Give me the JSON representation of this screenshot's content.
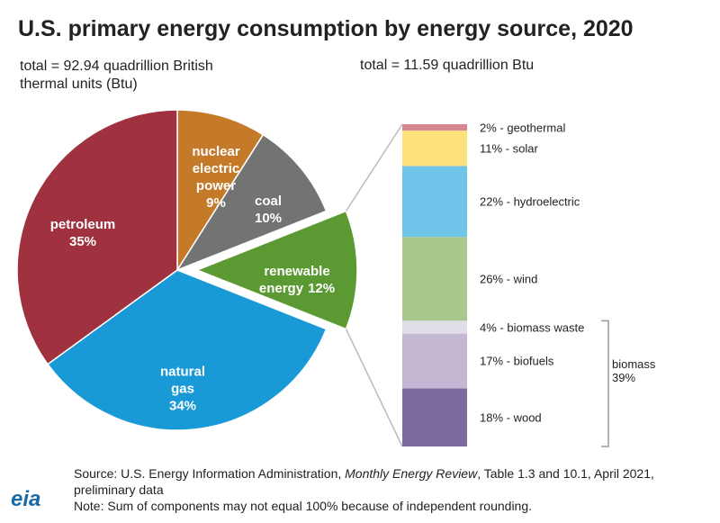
{
  "title": "U.S. primary energy consumption by energy source, 2020",
  "chart_data": [
    {
      "type": "pie",
      "subtitle": "total = 92.94 quadrillion British thermal units (Btu)",
      "categories": [
        "nuclear electric power",
        "coal",
        "renewable energy",
        "natural gas",
        "petroleum"
      ],
      "values": [
        9,
        10,
        12,
        34,
        35
      ],
      "value_labels": [
        "9%",
        "10%",
        "12%",
        "34%",
        "35%"
      ],
      "colors": [
        "#c57a2a",
        "#737373",
        "#5b9a32",
        "#199ad6",
        "#a0313f"
      ],
      "exploded": "renewable energy"
    },
    {
      "type": "stacked_bar",
      "subtitle": "total = 11.59 quadrillion Btu",
      "values": [
        2,
        11,
        22,
        26,
        4,
        17,
        18
      ],
      "value_labels": [
        "2% - geothermal",
        "11% - solar",
        "22% - hydroelectric",
        "26% - wind",
        "4% - biomass waste",
        "17% - biofuels",
        "18% - wood"
      ],
      "colors": [
        "#d88690",
        "#fde27c",
        "#6fc4ea",
        "#a7c98d",
        "#e2dee8",
        "#c3b7d4",
        "#7c6b9e"
      ],
      "ylim": [
        0,
        100
      ],
      "group": {
        "label": "biomass",
        "value": 39,
        "value_label": "39%",
        "members": [
          4,
          5,
          6
        ]
      }
    }
  ],
  "footer": {
    "source": [
      "Source: U.S. Energy Information Administration, ",
      "Monthly Energy Review",
      ", Table 1.3 and 10.1, April 2021, preliminary data"
    ],
    "note": "Note: Sum of components may not equal 100% because of independent rounding.",
    "logo": "eia"
  }
}
